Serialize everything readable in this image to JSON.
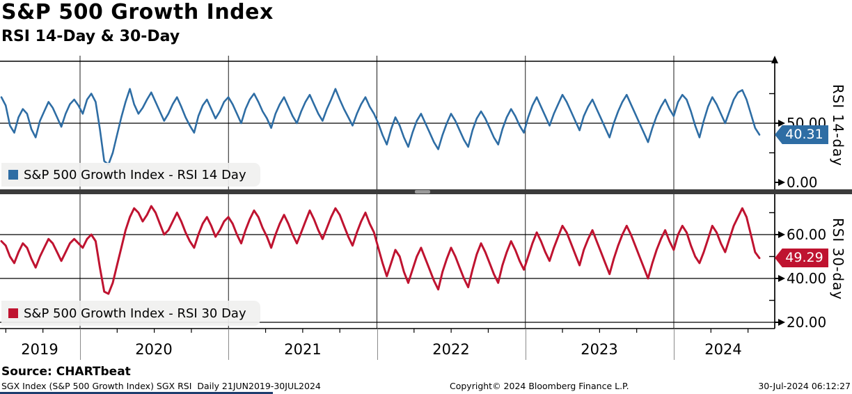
{
  "header": {
    "title": "S&P 500 Growth Index",
    "subtitle": "RSI 14-Day & 30-Day"
  },
  "colors": {
    "rsi14_line": "#2e6da4",
    "rsi30_line": "#bf1330",
    "grid": "#1a1a1a",
    "separator": "#3b3b3b",
    "legend_bg": "#f0f0ef"
  },
  "footer": {
    "source": "Source: CHARTbeat",
    "meta_left": "SGX Index (S&P 500 Growth Index) SGX RSI  Daily 21JUN2019-30JUL2024",
    "meta_center": "Copyright© 2024 Bloomberg Finance L.P.",
    "meta_right": "30-Jul-2024 06:12:27"
  },
  "chart_data": [
    {
      "type": "line",
      "name": "RSI 14 Day",
      "legend": "S&P 500 Growth Index - RSI 14 Day",
      "axis_label": "RSI 14-day",
      "color": "#2e6da4",
      "last_value_label": "40.31",
      "ylim": [
        0,
        103
      ],
      "yticks_labeled": [
        50,
        0
      ],
      "ytick_labels": [
        "50.00",
        "0.00"
      ],
      "yticks_minor": [
        75,
        25
      ],
      "x_start_decimal_year": 2019.47,
      "x_end_decimal_year": 2024.575,
      "x_range_label": "21JUN2019-30JUL2024",
      "grid": true,
      "legend_position": "bottom-left",
      "values": [
        72,
        65,
        48,
        42,
        55,
        62,
        58,
        45,
        38,
        52,
        60,
        68,
        63,
        55,
        47,
        58,
        66,
        70,
        65,
        58,
        70,
        75,
        68,
        45,
        18,
        15,
        25,
        40,
        55,
        68,
        79,
        66,
        58,
        63,
        70,
        76,
        68,
        60,
        52,
        58,
        66,
        72,
        64,
        55,
        48,
        42,
        56,
        65,
        70,
        62,
        54,
        60,
        68,
        72,
        66,
        58,
        50,
        62,
        70,
        75,
        68,
        60,
        54,
        46,
        58,
        66,
        72,
        64,
        56,
        50,
        60,
        68,
        74,
        66,
        58,
        52,
        62,
        70,
        79,
        70,
        62,
        55,
        48,
        58,
        66,
        72,
        64,
        58,
        50,
        40,
        32,
        45,
        55,
        48,
        38,
        30,
        42,
        52,
        58,
        50,
        42,
        34,
        28,
        40,
        50,
        58,
        52,
        44,
        36,
        30,
        44,
        54,
        60,
        54,
        46,
        38,
        32,
        45,
        55,
        62,
        56,
        48,
        42,
        55,
        65,
        72,
        64,
        56,
        48,
        58,
        66,
        74,
        68,
        60,
        52,
        44,
        56,
        64,
        70,
        62,
        54,
        46,
        38,
        50,
        60,
        68,
        74,
        66,
        58,
        50,
        42,
        34,
        46,
        56,
        64,
        70,
        62,
        56,
        68,
        74,
        70,
        60,
        48,
        38,
        52,
        64,
        72,
        66,
        58,
        50,
        60,
        70,
        76,
        78,
        70,
        58,
        46,
        40.31
      ]
    },
    {
      "type": "line",
      "name": "RSI 30 Day",
      "legend": "S&P 500 Growth Index - RSI 30 Day",
      "axis_label": "RSI 30-day",
      "color": "#bf1330",
      "last_value_label": "49.29",
      "ylim": [
        17,
        78
      ],
      "yticks_labeled": [
        60,
        40,
        20
      ],
      "ytick_labels": [
        "60.00",
        "40.00",
        "20.00"
      ],
      "yticks_minor": [
        70,
        50,
        30
      ],
      "x_start_decimal_year": 2019.47,
      "x_end_decimal_year": 2024.575,
      "x_tick_labels": [
        "2019",
        "2020",
        "2021",
        "2022",
        "2023",
        "2024"
      ],
      "grid": true,
      "legend_position": "bottom-left",
      "values": [
        57,
        55,
        50,
        47,
        52,
        56,
        54,
        49,
        45,
        50,
        54,
        58,
        56,
        52,
        48,
        52,
        56,
        58,
        56,
        54,
        58,
        60,
        57,
        45,
        34,
        33,
        38,
        46,
        54,
        62,
        68,
        72,
        70,
        66,
        69,
        73,
        70,
        65,
        60,
        62,
        66,
        70,
        66,
        61,
        57,
        54,
        60,
        65,
        68,
        64,
        59,
        62,
        66,
        68,
        65,
        60,
        56,
        62,
        67,
        71,
        68,
        63,
        59,
        54,
        60,
        65,
        69,
        65,
        60,
        56,
        61,
        66,
        71,
        67,
        62,
        58,
        63,
        68,
        72,
        69,
        64,
        59,
        55,
        61,
        66,
        70,
        65,
        61,
        54,
        47,
        41,
        47,
        53,
        50,
        43,
        38,
        44,
        50,
        54,
        49,
        44,
        39,
        35,
        43,
        49,
        54,
        50,
        45,
        40,
        36,
        44,
        51,
        56,
        52,
        47,
        42,
        38,
        46,
        52,
        57,
        53,
        48,
        44,
        50,
        56,
        61,
        57,
        52,
        48,
        54,
        59,
        64,
        61,
        56,
        51,
        46,
        53,
        58,
        62,
        57,
        52,
        47,
        42,
        49,
        55,
        60,
        64,
        60,
        55,
        50,
        45,
        40,
        47,
        53,
        58,
        62,
        57,
        53,
        60,
        64,
        61,
        55,
        50,
        47,
        52,
        58,
        64,
        61,
        56,
        52,
        58,
        64,
        68,
        72,
        68,
        60,
        52,
        49.29
      ]
    }
  ]
}
